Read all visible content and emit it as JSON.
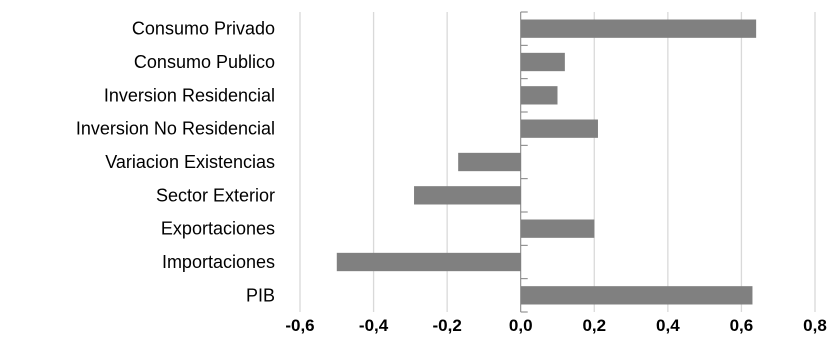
{
  "chart_data": {
    "type": "bar",
    "orientation": "horizontal",
    "categories": [
      "Consumo Privado",
      "Consumo Publico",
      "Inversion Residencial",
      "Inversion No Residencial",
      "Variacion Existencias",
      "Sector Exterior",
      "Exportaciones",
      "Importaciones",
      "PIB"
    ],
    "values": [
      0.64,
      0.12,
      0.1,
      0.21,
      -0.17,
      -0.29,
      0.2,
      -0.5,
      0.63
    ],
    "xlim": [
      -0.6,
      0.8
    ],
    "xticks": [
      -0.6,
      -0.4,
      -0.2,
      0.0,
      0.2,
      0.4,
      0.6,
      0.8
    ],
    "xtick_labels": [
      "-0,6",
      "-0,4",
      "-0,2",
      "0,0",
      "0,2",
      "0,4",
      "0,6",
      "0,8"
    ],
    "grid": "vertical",
    "legend": "none",
    "title": "",
    "xlabel": "",
    "ylabel": "",
    "colors": {
      "bar": "#808080",
      "grid": "#d9d9d9",
      "axis": "#7f7f7f",
      "text": "#000000"
    }
  }
}
